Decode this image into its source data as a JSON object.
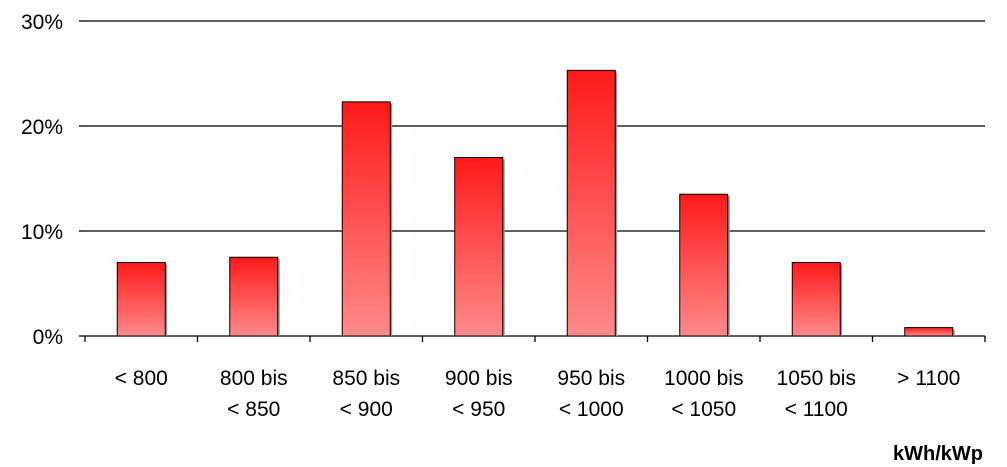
{
  "chart_data": {
    "type": "bar",
    "categories": [
      [
        "< 800"
      ],
      [
        "800 bis",
        "< 850"
      ],
      [
        "850 bis",
        "< 900"
      ],
      [
        "900 bis",
        "< 950"
      ],
      [
        "950 bis",
        "< 1000"
      ],
      [
        "1000 bis",
        "< 1050"
      ],
      [
        "1050 bis",
        "< 1100"
      ],
      [
        "> 1100"
      ]
    ],
    "values": [
      7,
      7.5,
      22.3,
      17,
      25.3,
      13.5,
      7,
      0.8
    ],
    "ylim": [
      0,
      30
    ],
    "yticks": [
      0,
      10,
      20,
      30
    ],
    "ytick_labels": [
      "0%",
      "10%",
      "20%",
      "30%"
    ],
    "xlabel": "kWh/kWp",
    "grid": true,
    "colors": {
      "bar_top": "#ff1a1a",
      "bar_bottom": "#ff8a8a",
      "shadow": "#999999"
    }
  }
}
